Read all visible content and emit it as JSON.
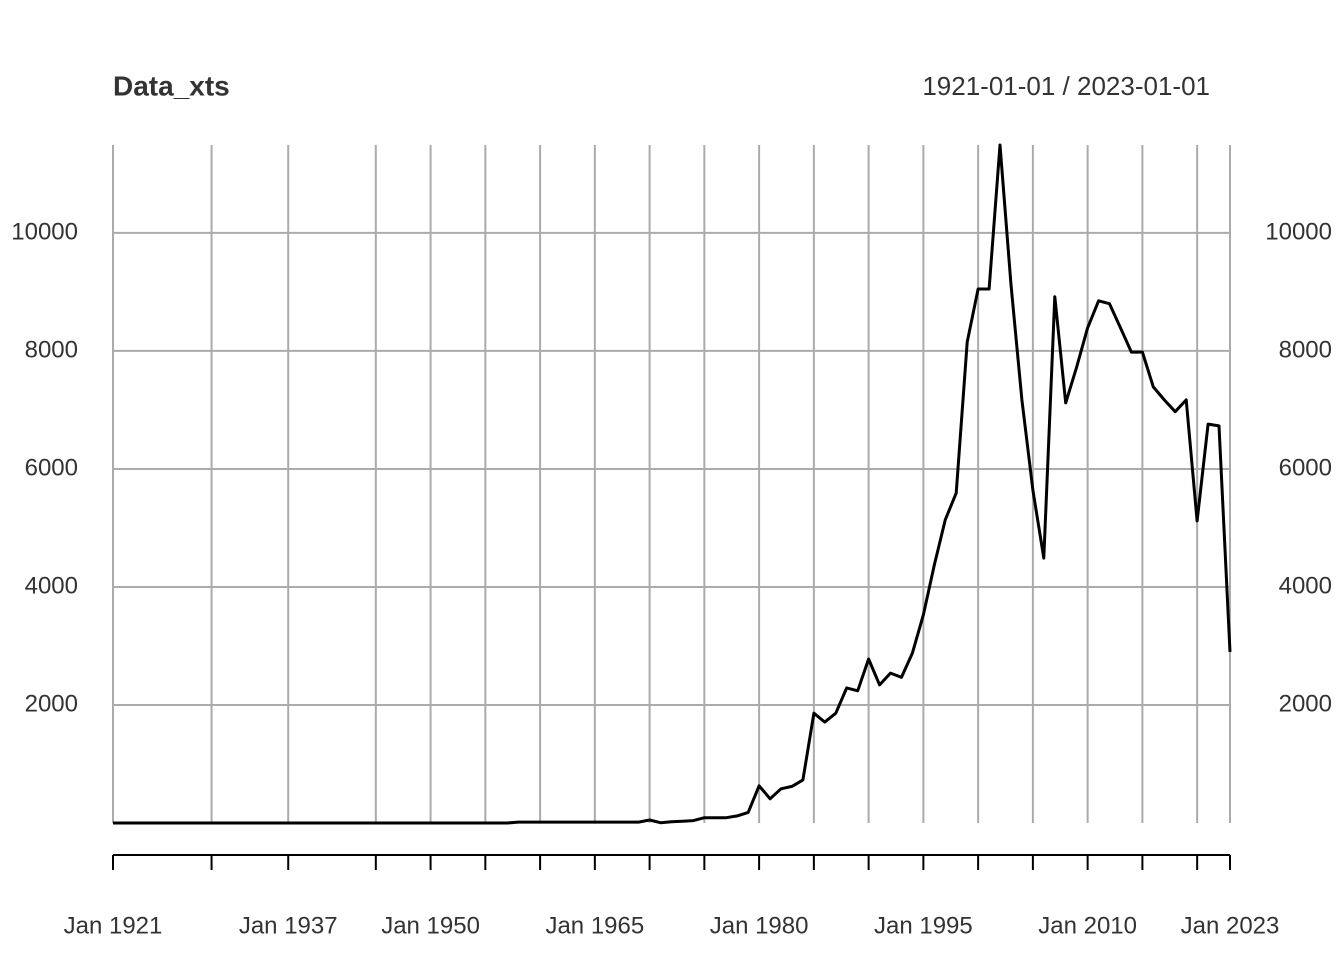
{
  "chart_data": {
    "type": "line",
    "title": "Data_xts",
    "subtitle": "1921-01-01 / 2023-01-01",
    "x": [
      1921,
      1922,
      1923,
      1924,
      1925,
      1926,
      1927,
      1928,
      1929,
      1930,
      1931,
      1932,
      1933,
      1934,
      1935,
      1936,
      1937,
      1938,
      1939,
      1940,
      1941,
      1942,
      1943,
      1944,
      1945,
      1946,
      1947,
      1948,
      1949,
      1950,
      1951,
      1952,
      1953,
      1954,
      1955,
      1956,
      1957,
      1958,
      1959,
      1960,
      1961,
      1962,
      1963,
      1964,
      1965,
      1966,
      1967,
      1968,
      1969,
      1970,
      1971,
      1972,
      1973,
      1974,
      1975,
      1976,
      1977,
      1978,
      1979,
      1980,
      1981,
      1982,
      1983,
      1984,
      1985,
      1986,
      1987,
      1988,
      1989,
      1990,
      1991,
      1992,
      1993,
      1994,
      1995,
      1996,
      1997,
      1998,
      1999,
      2000,
      2001,
      2002,
      2003,
      2004,
      2005,
      2006,
      2007,
      2008,
      2009,
      2010,
      2011,
      2012,
      2013,
      2014,
      2015,
      2016,
      2017,
      2018,
      2019,
      2020,
      2021,
      2022,
      2023
    ],
    "series": [
      {
        "name": "Data_xts",
        "color": "#000000",
        "values": [
          0,
          0,
          0,
          0,
          0,
          0,
          0,
          0,
          0,
          0,
          0,
          0,
          0,
          0,
          0,
          0,
          0,
          0,
          0,
          0,
          0,
          0,
          0,
          0,
          0,
          0,
          0,
          0,
          0,
          0,
          0,
          0,
          0,
          0,
          0,
          0,
          0,
          15,
          15,
          15,
          15,
          15,
          15,
          15,
          15,
          15,
          15,
          15,
          15,
          50,
          5,
          20,
          30,
          40,
          90,
          90,
          90,
          120,
          180,
          630,
          410,
          580,
          620,
          730,
          1860,
          1710,
          1860,
          2290,
          2240,
          2780,
          2340,
          2540,
          2470,
          2880,
          3530,
          4370,
          5140,
          5590,
          8150,
          9050,
          9050,
          11490,
          9120,
          7170,
          5640,
          4490,
          8920,
          7120,
          7730,
          8390,
          8850,
          8800,
          8390,
          7980,
          7980,
          7390,
          7170,
          6970,
          7170,
          5120,
          6760,
          6730,
          2900
        ]
      }
    ],
    "xlim": [
      1921,
      2023
    ],
    "xticks": [
      {
        "value": 1921,
        "label": "Jan 1921"
      },
      {
        "value": 1930,
        "label": null
      },
      {
        "value": 1937,
        "label": "Jan 1937"
      },
      {
        "value": 1945,
        "label": null
      },
      {
        "value": 1950,
        "label": "Jan 1950"
      },
      {
        "value": 1955,
        "label": null
      },
      {
        "value": 1960,
        "label": null
      },
      {
        "value": 1965,
        "label": "Jan 1965"
      },
      {
        "value": 1970,
        "label": null
      },
      {
        "value": 1975,
        "label": null
      },
      {
        "value": 1980,
        "label": "Jan 1980"
      },
      {
        "value": 1985,
        "label": null
      },
      {
        "value": 1990,
        "label": null
      },
      {
        "value": 1995,
        "label": "Jan 1995"
      },
      {
        "value": 2000,
        "label": null
      },
      {
        "value": 2005,
        "label": null
      },
      {
        "value": 2010,
        "label": "Jan 2010"
      },
      {
        "value": 2015,
        "label": null
      },
      {
        "value": 2020,
        "label": null
      },
      {
        "value": 2023,
        "label": "Jan 2023"
      }
    ],
    "ylim": [
      0,
      11490
    ],
    "yticks": [
      2000,
      4000,
      6000,
      8000,
      10000
    ],
    "grid": true
  }
}
